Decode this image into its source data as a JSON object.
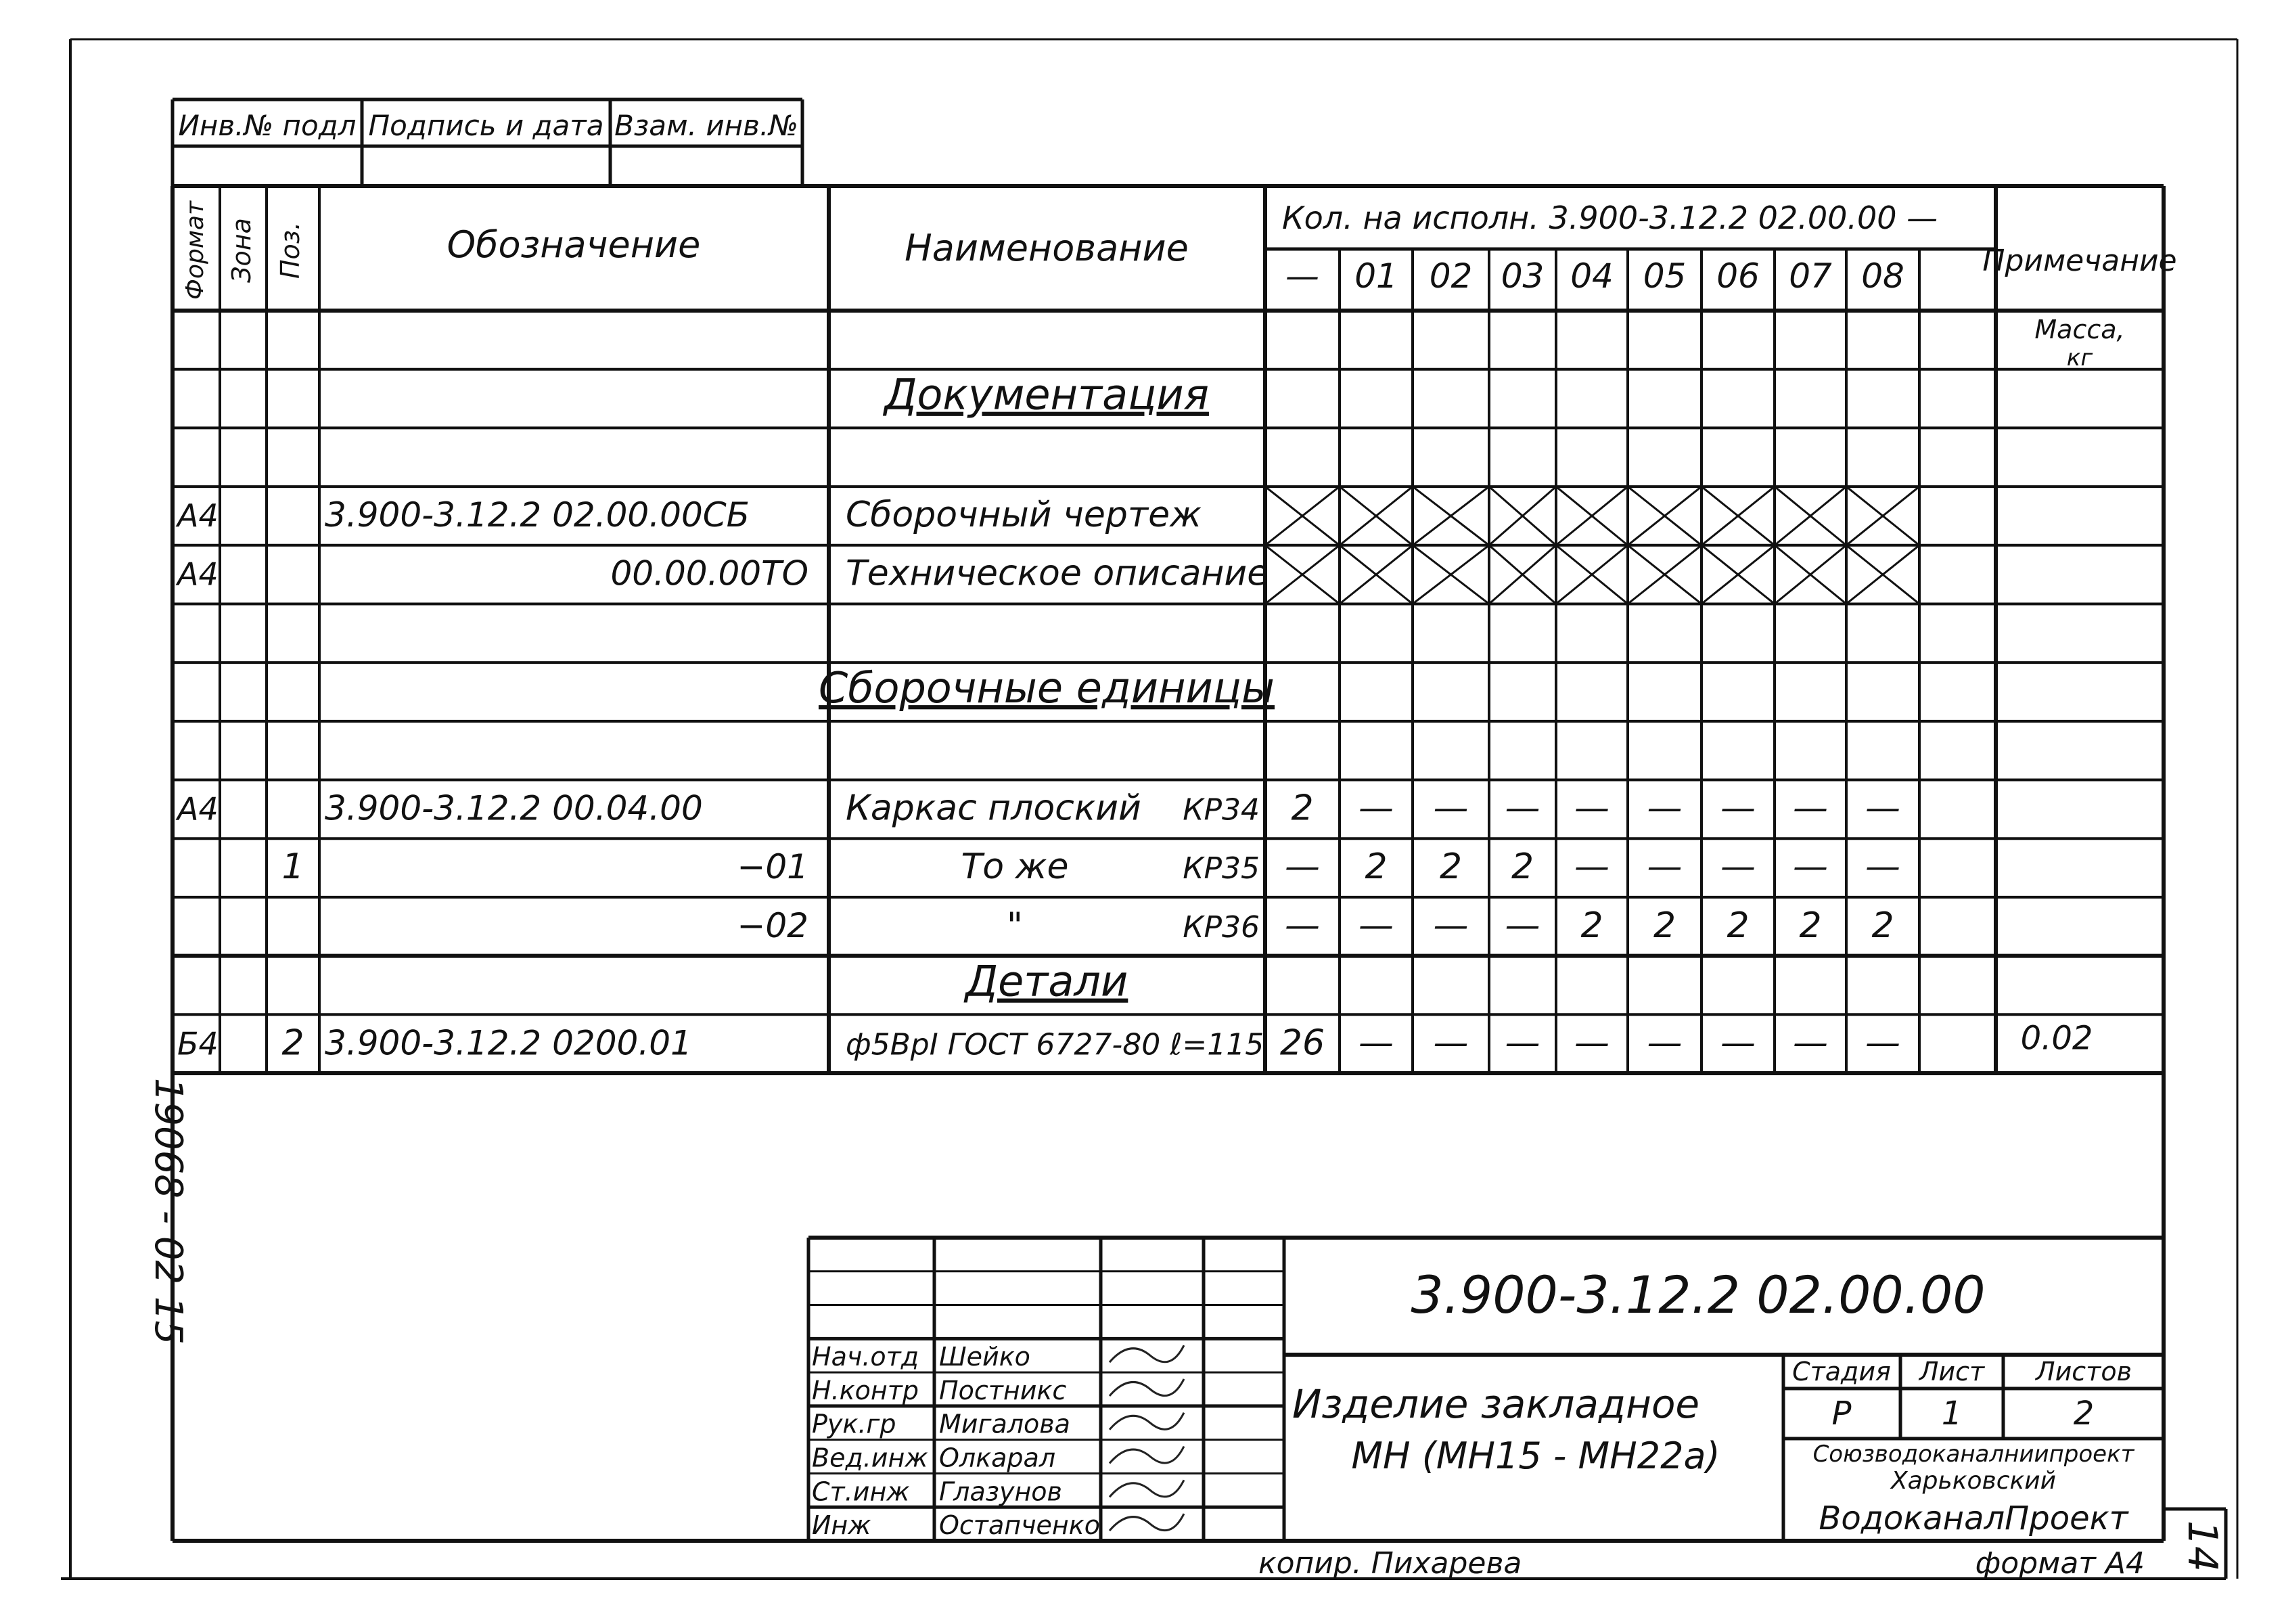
{
  "stamp": {
    "headers": [
      "Инв.№ подл",
      "Подпись и дата",
      "Взам. инв.№"
    ]
  },
  "table": {
    "headers": {
      "format": "Формат",
      "zone": "Зона",
      "pos": "Поз.",
      "designation": "Обозначение",
      "name": "Наименование",
      "qty_title": "Кол. на исполн. 3.900-3.12.2  02.00.00 —",
      "variants": [
        "—",
        "01",
        "02",
        "03",
        "04",
        "05",
        "06",
        "07",
        "08"
      ],
      "note": "Примечание",
      "mass": "Масса,",
      "mass_unit": "кг"
    },
    "rows": [
      {
        "format": "",
        "zone": "",
        "pos": "",
        "designation": "",
        "name": "",
        "mark": "",
        "qty": [],
        "note": "",
        "section": ""
      },
      {
        "format": "",
        "zone": "",
        "pos": "",
        "designation": "",
        "name": "",
        "mark": "",
        "qty": [],
        "note": "",
        "section": "Документация"
      },
      {
        "format": "",
        "zone": "",
        "pos": "",
        "designation": "",
        "name": "",
        "mark": "",
        "qty": [],
        "note": "",
        "section": ""
      },
      {
        "format": "А4",
        "zone": "",
        "pos": "",
        "designation": "3.900-3.12.2   02.00.00СБ",
        "name": "Сборочный чертеж",
        "mark": "",
        "qty": [],
        "crossed": true,
        "note": "",
        "section": ""
      },
      {
        "format": "А4",
        "zone": "",
        "pos": "",
        "designation": "00.00.00ТО",
        "name": "Техническое описание",
        "mark": "",
        "qty": [],
        "crossed": true,
        "note": "",
        "section": ""
      },
      {
        "format": "",
        "zone": "",
        "pos": "",
        "designation": "",
        "name": "",
        "mark": "",
        "qty": [],
        "note": "",
        "section": ""
      },
      {
        "format": "",
        "zone": "",
        "pos": "",
        "designation": "",
        "name": "",
        "mark": "",
        "qty": [],
        "note": "",
        "section": "Сборочные единицы"
      },
      {
        "format": "",
        "zone": "",
        "pos": "",
        "designation": "",
        "name": "",
        "mark": "",
        "qty": [],
        "note": "",
        "section": ""
      },
      {
        "format": "А4",
        "zone": "",
        "pos": "",
        "designation": "3.900-3.12.2   00.04.00",
        "name": "Каркас плоский",
        "mark": "КР34",
        "qty": [
          "2",
          "—",
          "—",
          "—",
          "—",
          "—",
          "—",
          "—",
          "—"
        ],
        "note": "",
        "section": ""
      },
      {
        "format": "",
        "zone": "",
        "pos": "1",
        "designation": "−01",
        "name": "То же",
        "mark": "КР35",
        "qty": [
          "—",
          "2",
          "2",
          "2",
          "—",
          "—",
          "—",
          "—",
          "—"
        ],
        "note": "",
        "section": ""
      },
      {
        "format": "",
        "zone": "",
        "pos": "",
        "designation": "−02",
        "name": "\"",
        "mark": "КР36",
        "qty": [
          "—",
          "—",
          "—",
          "—",
          "2",
          "2",
          "2",
          "2",
          "2"
        ],
        "note": "",
        "section": ""
      },
      {
        "format": "",
        "zone": "",
        "pos": "",
        "designation": "",
        "name": "",
        "mark": "",
        "qty": [],
        "note": "",
        "section": "Детали"
      },
      {
        "format": "Б4",
        "zone": "",
        "pos": "2",
        "designation": "3.900-3.12.2   0200.01",
        "name": "ф5ВрI ГОСТ 6727-80  ℓ=115",
        "mark": "",
        "qty": [
          "26",
          "—",
          "—",
          "—",
          "—",
          "—",
          "—",
          "—",
          "—"
        ],
        "note": "0.02",
        "section": ""
      }
    ]
  },
  "title_block": {
    "code": "3.900-3.12.2   02.00.00",
    "product_name_line1": "Изделие закладное",
    "product_name_line2": "МН (МН15 - МН22а)",
    "stage_label": "Стадия",
    "sheet_label": "Лист",
    "sheets_label": "Листов",
    "stage": "Р",
    "sheet": "1",
    "sheets": "2",
    "org_line1": "Союзводоканалниипроект",
    "org_line2": "Харьковский",
    "org_line3": "ВодоканалПроект",
    "signers": [
      {
        "role": "Нач.отд",
        "name": "Шейко"
      },
      {
        "role": "Н.контр",
        "name": "Постникс"
      },
      {
        "role": "Рук.гр",
        "name": "Мигалова"
      },
      {
        "role": "Вед.инж",
        "name": "Олкарал"
      },
      {
        "role": "Ст.инж",
        "name": "Глазунов"
      },
      {
        "role": "Инж",
        "name": "Остапченко"
      }
    ]
  },
  "footer": {
    "copied_by": "копир. Пихарева",
    "format": "формат А4",
    "page_number": "14",
    "side_code": "19068 - 02   15"
  }
}
